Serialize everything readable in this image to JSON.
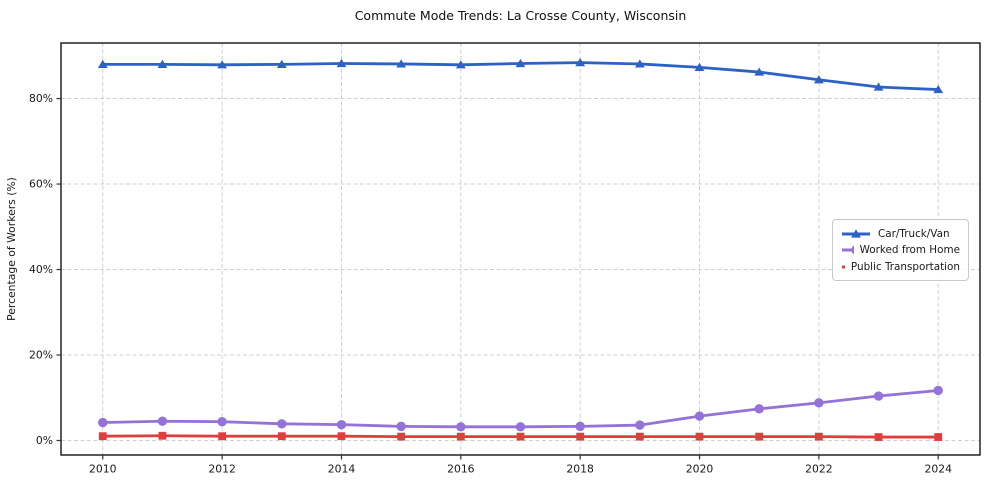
{
  "chart_data": {
    "type": "line",
    "title": "Commute Mode Trends: La Crosse County, Wisconsin",
    "xlabel": "",
    "ylabel": "Percentage of Workers (%)",
    "x": [
      2010,
      2011,
      2012,
      2013,
      2014,
      2015,
      2016,
      2017,
      2018,
      2019,
      2020,
      2021,
      2022,
      2023,
      2024
    ],
    "series": [
      {
        "name": "Car/Truck/Van",
        "color": "#2d62c5",
        "marker": "triangle",
        "values": [
          88.0,
          88.0,
          87.9,
          88.0,
          88.2,
          88.1,
          87.9,
          88.2,
          88.4,
          88.1,
          87.3,
          86.2,
          84.4,
          82.7,
          82.1
        ]
      },
      {
        "name": "Worked from Home",
        "color": "#9572d8",
        "marker": "circle",
        "values": [
          4.2,
          4.5,
          4.4,
          3.9,
          3.7,
          3.3,
          3.2,
          3.2,
          3.3,
          3.6,
          5.7,
          7.4,
          8.8,
          10.4,
          11.7
        ]
      },
      {
        "name": "Public Transportation",
        "color": "#e23d3d",
        "marker": "square",
        "values": [
          1.0,
          1.1,
          1.0,
          1.0,
          1.0,
          0.9,
          0.9,
          0.9,
          0.9,
          0.9,
          0.9,
          0.9,
          0.9,
          0.8,
          0.8
        ]
      }
    ],
    "xtick_labels": [
      "2010",
      "2012",
      "2014",
      "2016",
      "2018",
      "2020",
      "2022",
      "2024"
    ],
    "xtick_values": [
      2010,
      2012,
      2014,
      2016,
      2018,
      2020,
      2022,
      2024
    ],
    "ytick_labels": [
      "0%",
      "20%",
      "40%",
      "60%",
      "80%"
    ],
    "ytick_values": [
      0,
      20,
      40,
      60,
      80
    ],
    "xlim": [
      2009.3,
      2024.7
    ],
    "ylim": [
      -3.4,
      93
    ],
    "grid": true,
    "grid_style": "dashed",
    "grid_color": "#d0d0d0",
    "axis_color": "#000000",
    "text_color": "#1a1a1a",
    "legend_position": "center-right"
  }
}
